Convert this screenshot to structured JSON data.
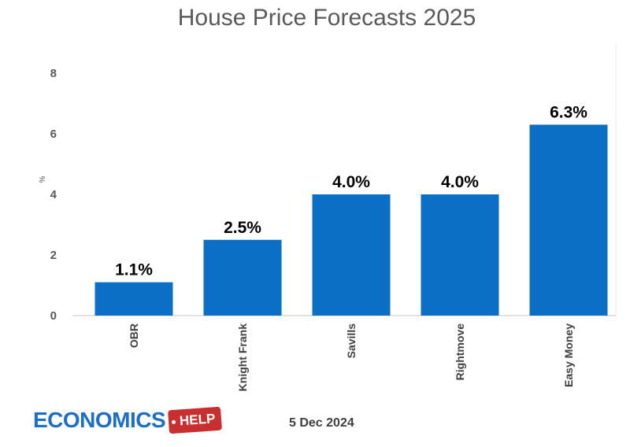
{
  "chart_data": {
    "type": "bar",
    "title": "House Price Forecasts 2025",
    "ylabel": "%",
    "xlabel": "",
    "categories": [
      "OBR",
      "Knight Frank",
      "Savills",
      "Rightmove",
      "Easy Money"
    ],
    "values": [
      1.1,
      2.5,
      4.0,
      4.0,
      6.3
    ],
    "data_labels": [
      "1.1%",
      "2.5%",
      "4.0%",
      "4.0%",
      "6.3%"
    ],
    "ylim": [
      0,
      8
    ],
    "yticks": [
      0,
      2,
      4,
      6,
      8
    ],
    "grid": false,
    "bar_color": "#0b6fc6"
  },
  "footer": {
    "date": "5 Dec 2024",
    "logo_text": "ECONOMICS",
    "logo_tag": "HELP"
  },
  "colors": {
    "title": "#5a5a5a",
    "axis": "#d9d9d9",
    "logo_blue": "#1c6fc4",
    "logo_red": "#c8302f"
  }
}
